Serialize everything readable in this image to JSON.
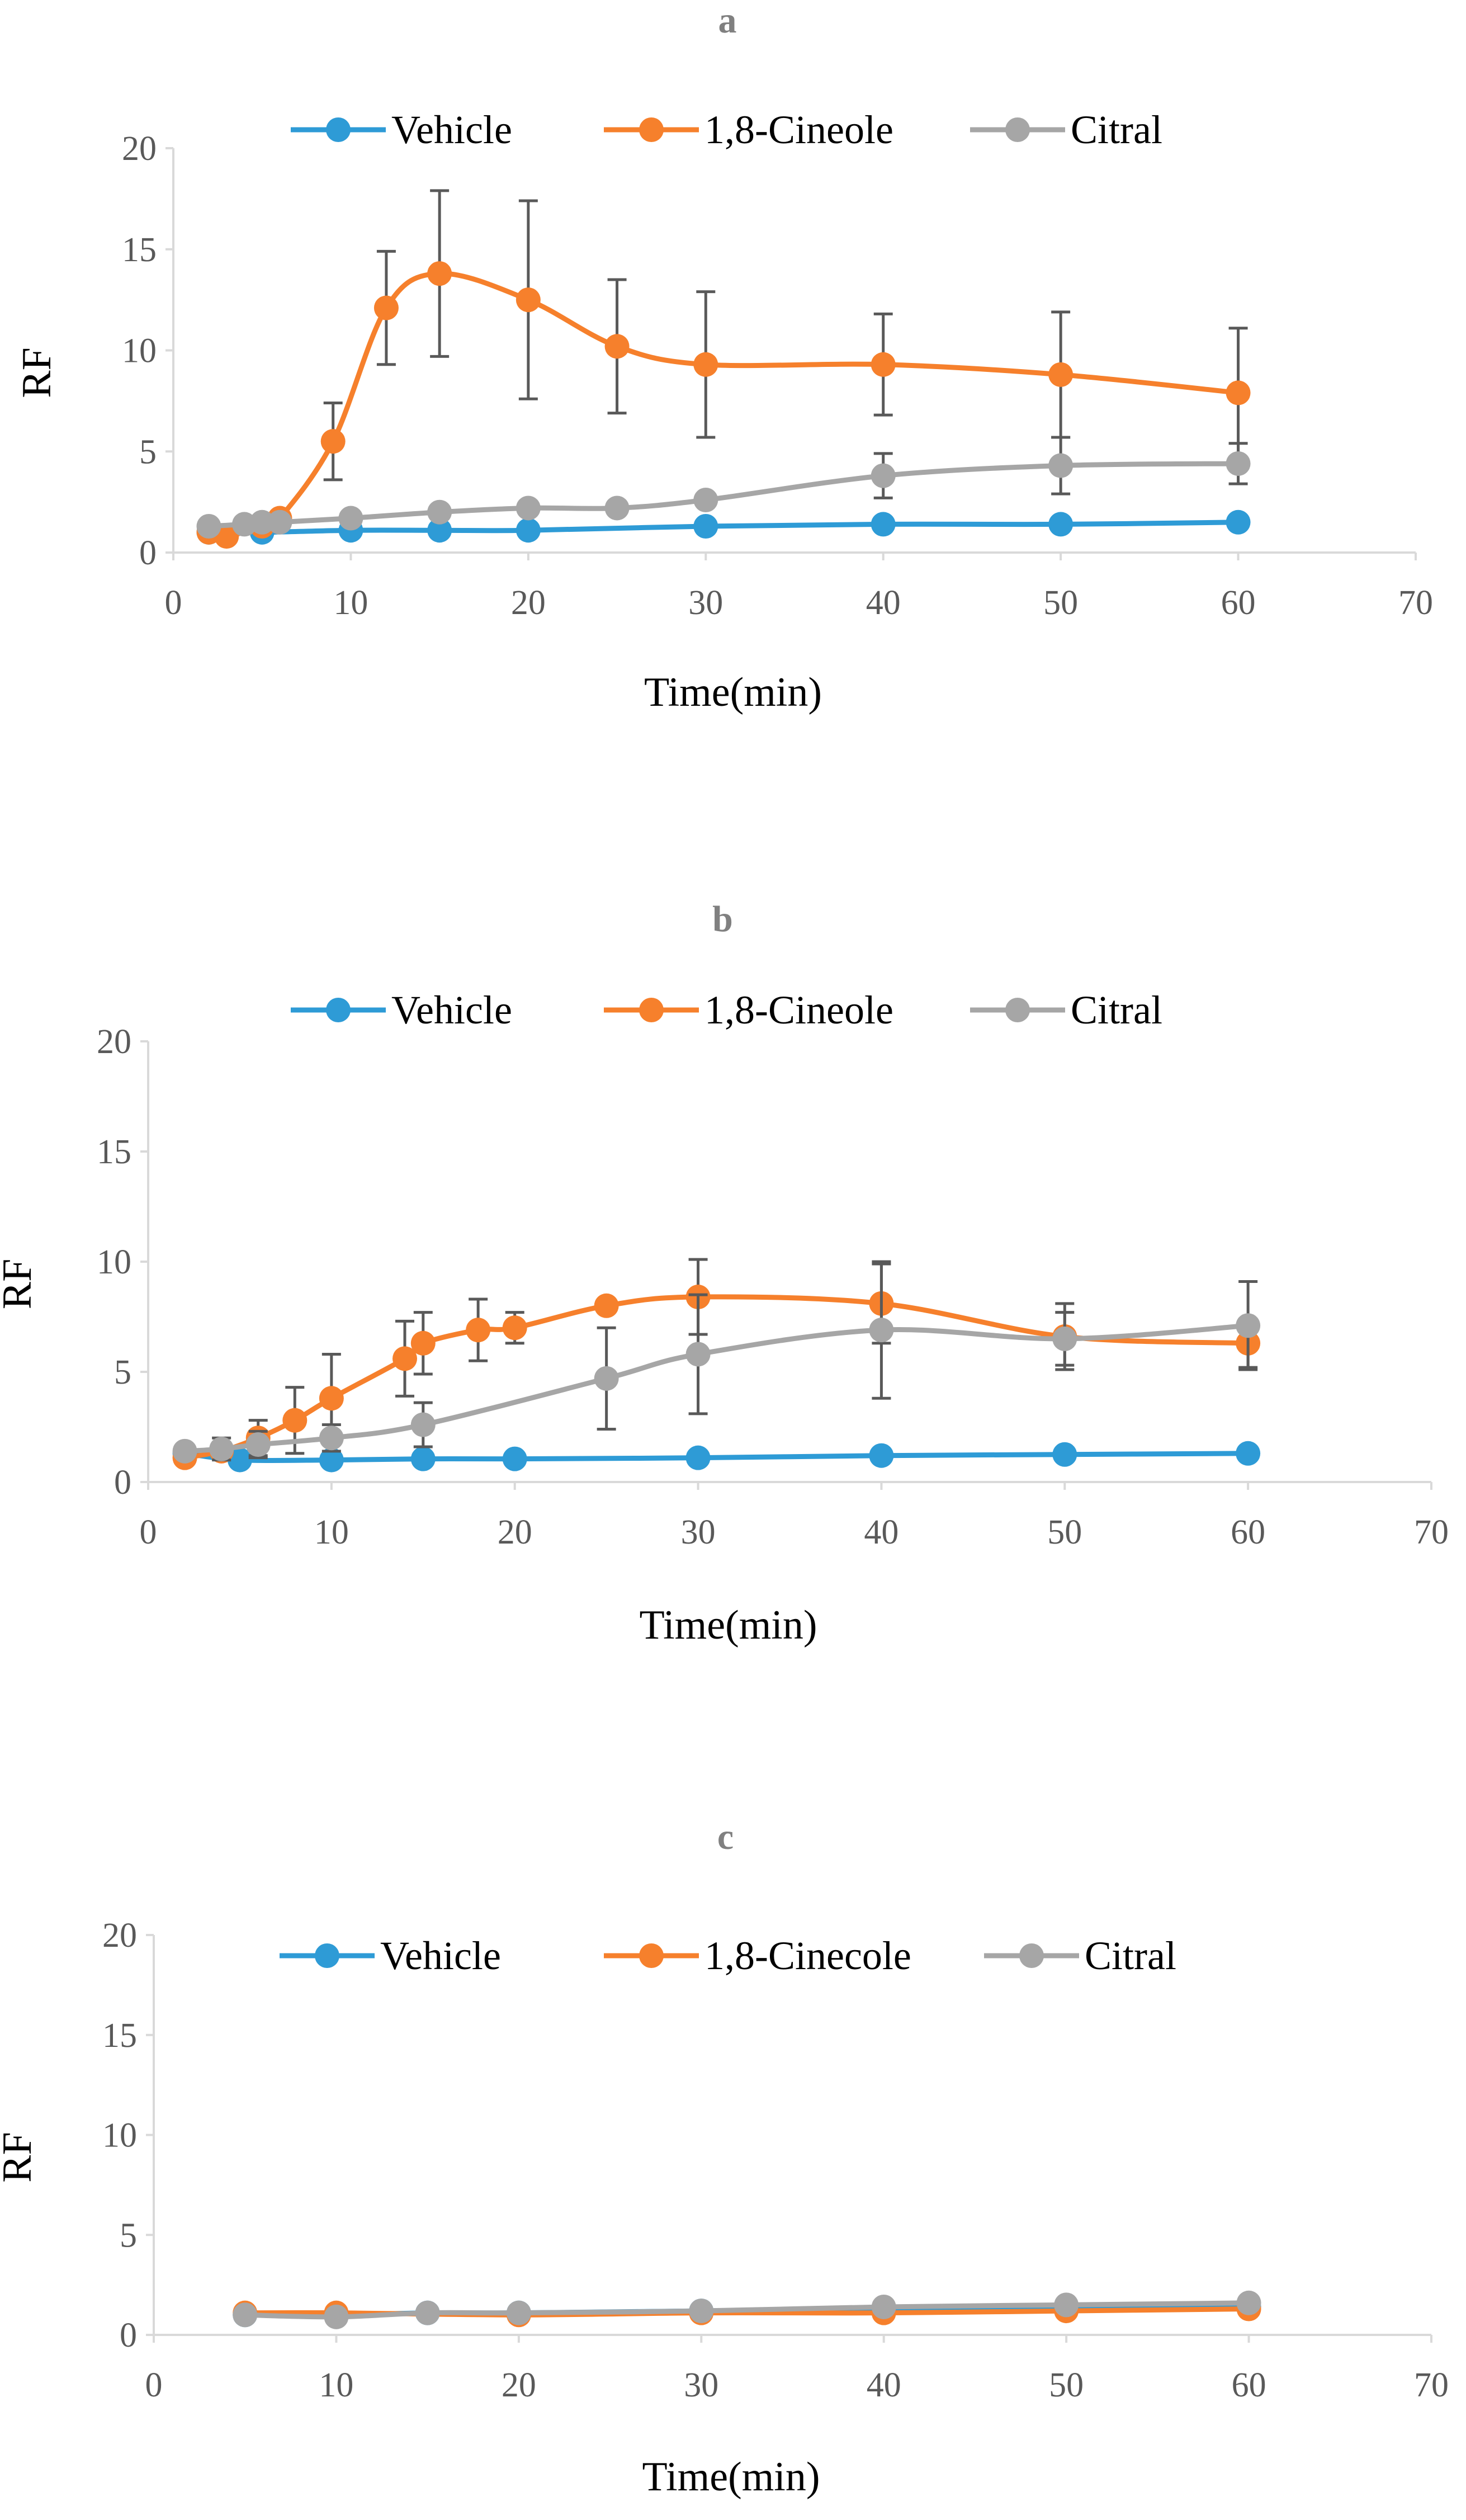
{
  "colors": {
    "Vehicle": "#2E9BD6",
    "1,8-Cineole": "#F6802C",
    "Citral": "#A6A6A6",
    "error_bar": "#595959",
    "axis": "#D9D9D9",
    "panel_label": "#808080"
  },
  "chart_data": [
    {
      "type": "line",
      "title": "a",
      "xlabel": "Time(min)",
      "ylabel": "RF",
      "xlim": [
        0,
        70
      ],
      "ylim": [
        0,
        20
      ],
      "xticks": [
        0,
        10,
        20,
        30,
        40,
        50,
        60,
        70
      ],
      "yticks": [
        0,
        5,
        10,
        15,
        20
      ],
      "grid": false,
      "legend": "top",
      "series": [
        {
          "name": "Vehicle",
          "x": [
            2,
            5,
            10,
            15,
            20,
            30,
            40,
            50,
            60
          ],
          "y": [
            1.0,
            1.0,
            1.1,
            1.1,
            1.1,
            1.3,
            1.4,
            1.4,
            1.5
          ],
          "err": []
        },
        {
          "name": "1,8-Cineole",
          "x": [
            2,
            3,
            5,
            6,
            9,
            12,
            15,
            20,
            25,
            30,
            40,
            50,
            60
          ],
          "y": [
            1.0,
            0.8,
            1.3,
            1.7,
            5.5,
            12.1,
            13.8,
            12.5,
            10.2,
            9.3,
            9.3,
            8.8,
            7.9
          ],
          "err": [
            0,
            0,
            0,
            0,
            1.9,
            2.8,
            4.1,
            4.9,
            3.3,
            3.6,
            2.5,
            3.1,
            3.2
          ]
        },
        {
          "name": "Citral",
          "x": [
            2,
            4,
            5,
            6,
            10,
            15,
            20,
            25,
            30,
            40,
            50,
            60
          ],
          "y": [
            1.3,
            1.4,
            1.5,
            1.5,
            1.7,
            2.0,
            2.2,
            2.2,
            2.6,
            3.8,
            4.3,
            4.4
          ],
          "err": [
            0,
            0,
            0,
            0,
            0,
            0,
            0,
            0,
            0,
            1.1,
            1.4,
            1.0
          ]
        }
      ]
    },
    {
      "type": "line",
      "title": "b",
      "xlabel": "Time(min)",
      "ylabel": "RF",
      "xlim": [
        0,
        70
      ],
      "ylim": [
        0,
        20
      ],
      "xticks": [
        0,
        10,
        20,
        30,
        40,
        50,
        60,
        70
      ],
      "yticks": [
        0,
        5,
        10,
        15,
        20
      ],
      "grid": false,
      "legend": "top",
      "series": [
        {
          "name": "Vehicle",
          "x": [
            2,
            5,
            10,
            15,
            20,
            30,
            40,
            50,
            60
          ],
          "y": [
            1.3,
            1.0,
            1.0,
            1.05,
            1.05,
            1.1,
            1.2,
            1.25,
            1.3
          ],
          "err": []
        },
        {
          "name": "1,8-Cineole",
          "x": [
            2,
            4,
            6,
            8,
            10,
            14,
            15,
            18,
            20,
            25,
            30,
            40,
            50,
            60
          ],
          "y": [
            1.1,
            1.4,
            2.0,
            2.8,
            3.8,
            5.6,
            6.3,
            6.9,
            7.0,
            8.0,
            8.4,
            8.1,
            6.6,
            6.3
          ],
          "err": [
            0,
            0,
            0.8,
            1.5,
            2.0,
            1.7,
            1.4,
            1.4,
            0.7,
            0,
            1.7,
            1.8,
            1.5,
            1.1
          ]
        },
        {
          "name": "Citral",
          "x": [
            2,
            4,
            6,
            10,
            15,
            25,
            30,
            40,
            50,
            60
          ],
          "y": [
            1.4,
            1.5,
            1.7,
            2.0,
            2.6,
            4.7,
            5.8,
            6.9,
            6.5,
            7.1
          ],
          "err": [
            0,
            0.5,
            0.6,
            0.6,
            1.0,
            2.3,
            2.7,
            3.1,
            1.2,
            2.0
          ]
        }
      ]
    },
    {
      "type": "line",
      "title": "c",
      "xlabel": "Time(min)",
      "ylabel": "RF",
      "xlim": [
        0,
        70
      ],
      "ylim": [
        0,
        20
      ],
      "xticks": [
        0,
        10,
        20,
        30,
        40,
        50,
        60,
        70
      ],
      "yticks": [
        0,
        5,
        10,
        15,
        20
      ],
      "grid": false,
      "legend": "top",
      "series": [
        {
          "name": "Vehicle",
          "x": [
            5,
            10,
            15,
            20,
            30,
            40,
            50,
            60
          ],
          "y": [
            1.0,
            1.0,
            1.1,
            1.1,
            1.2,
            1.3,
            1.3,
            1.4
          ],
          "err": []
        },
        {
          "name": "1,8-Cinecole",
          "x": [
            5,
            10,
            20,
            30,
            40,
            50,
            60
          ],
          "y": [
            1.1,
            1.1,
            1.0,
            1.1,
            1.1,
            1.2,
            1.3
          ],
          "err": []
        },
        {
          "name": "Citral",
          "x": [
            5,
            10,
            15,
            20,
            30,
            40,
            50,
            60
          ],
          "y": [
            1.0,
            0.9,
            1.1,
            1.1,
            1.2,
            1.4,
            1.5,
            1.6
          ],
          "err": []
        }
      ]
    }
  ]
}
